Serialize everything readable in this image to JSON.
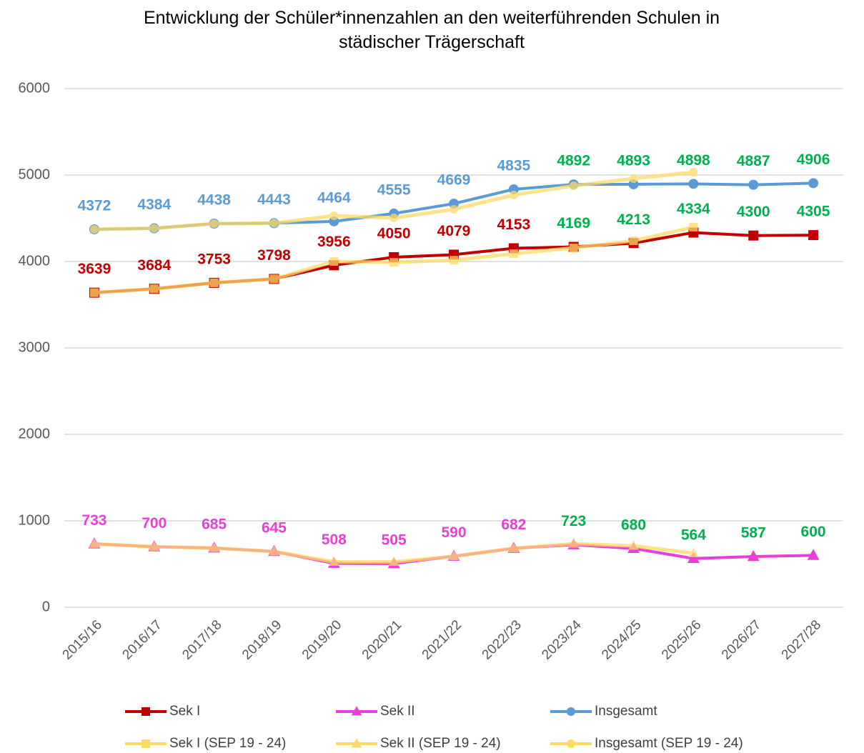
{
  "chart_data": {
    "type": "line",
    "title": "Entwicklung der Schüler*innenzahlen an den weiterführenden Schulen in städischer Trägerschaft",
    "categories": [
      "2015/16",
      "2016/17",
      "2017/18",
      "2018/19",
      "2019/20",
      "2020/21",
      "2021/22",
      "2022/23",
      "2023/24",
      "2024/25",
      "2025/26",
      "2026/27",
      "2027/28"
    ],
    "ylim": [
      0,
      6000
    ],
    "yticks": [
      0,
      1000,
      2000,
      3000,
      4000,
      5000,
      6000
    ],
    "grid": true,
    "legend": "bottom",
    "series": [
      {
        "name": "Sek I",
        "color": "#c00000",
        "marker": "square",
        "values": [
          3639,
          3684,
          3753,
          3798,
          3956,
          4050,
          4079,
          4153,
          4169,
          4213,
          4334,
          4300,
          4305
        ],
        "label_colors": [
          "#c00000",
          "#c00000",
          "#c00000",
          "#c00000",
          "#c00000",
          "#c00000",
          "#c00000",
          "#c00000",
          "#00b050",
          "#00b050",
          "#00b050",
          "#00b050",
          "#00b050"
        ]
      },
      {
        "name": "Sek II",
        "color": "#e83fd7",
        "marker": "triangle",
        "values": [
          733,
          700,
          685,
          645,
          508,
          505,
          590,
          682,
          723,
          680,
          564,
          587,
          600
        ],
        "label_colors": [
          "#e83fd7",
          "#e83fd7",
          "#e83fd7",
          "#e83fd7",
          "#e83fd7",
          "#e83fd7",
          "#e83fd7",
          "#e83fd7",
          "#00b050",
          "#00b050",
          "#00b050",
          "#00b050",
          "#00b050"
        ]
      },
      {
        "name": "Insgesamt",
        "color": "#5b9bd5",
        "marker": "circle",
        "values": [
          4372,
          4384,
          4438,
          4443,
          4464,
          4555,
          4669,
          4835,
          4892,
          4893,
          4898,
          4887,
          4906
        ],
        "label_colors": [
          "#5b9bd5",
          "#5b9bd5",
          "#5b9bd5",
          "#5b9bd5",
          "#5b9bd5",
          "#5b9bd5",
          "#5b9bd5",
          "#5b9bd5",
          "#00b050",
          "#00b050",
          "#00b050",
          "#00b050",
          "#00b050"
        ]
      },
      {
        "name": "Sek I (SEP 19 - 24)",
        "color": "#ffd966",
        "marker": "square",
        "values": [
          3639,
          3684,
          3753,
          3798,
          4000,
          3990,
          4015,
          4090,
          4157,
          4240,
          4397,
          null,
          null
        ]
      },
      {
        "name": "Sek II (SEP 19 - 24)",
        "color": "#ffd966",
        "marker": "triangle",
        "values": [
          733,
          700,
          685,
          645,
          525,
          525,
          590,
          682,
          735,
          710,
          625,
          null,
          null
        ]
      },
      {
        "name": "Insgesamt (SEP 19 - 24)",
        "color": "#ffd966",
        "marker": "circle",
        "values": [
          4372,
          4384,
          4438,
          4443,
          4529,
          4504,
          4603,
          4769,
          4876,
          4959,
          5033,
          null,
          null
        ]
      }
    ]
  }
}
